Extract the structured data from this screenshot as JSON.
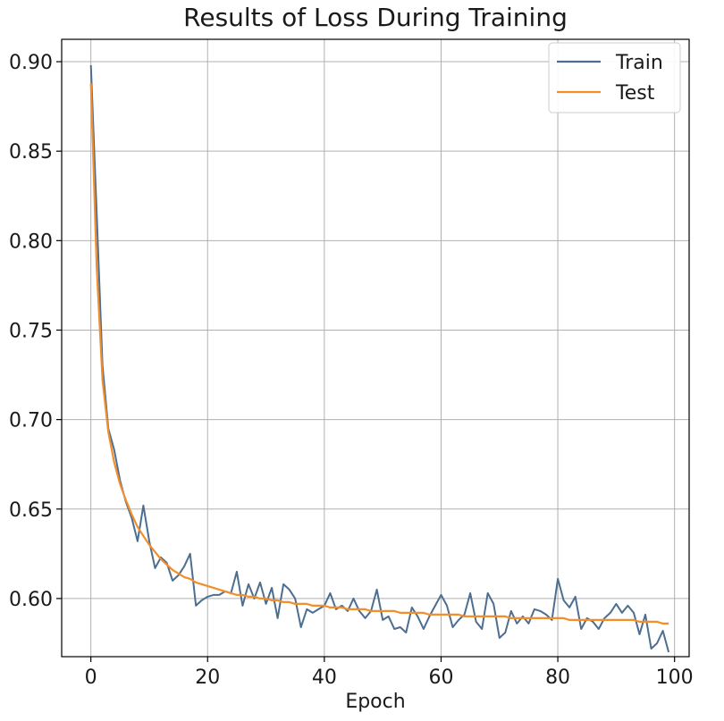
{
  "chart_data": {
    "type": "line",
    "title": "Results of Loss During Training",
    "xlabel": "Epoch",
    "ylabel": "",
    "xlim": [
      -5,
      102.5
    ],
    "ylim": [
      0.5675,
      0.9125
    ],
    "xticks": [
      0,
      20,
      40,
      60,
      80,
      100
    ],
    "xtick_labels": [
      "0",
      "20",
      "40",
      "60",
      "80",
      "100"
    ],
    "yticks": [
      0.6,
      0.65,
      0.7,
      0.75,
      0.8,
      0.85,
      0.9
    ],
    "ytick_labels": [
      "0.60",
      "0.65",
      "0.70",
      "0.75",
      "0.80",
      "0.85",
      "0.90"
    ],
    "grid": true,
    "legend_position": "top-right",
    "series": [
      {
        "name": "Train",
        "color": "#4c6e91",
        "x": [
          0,
          1,
          2,
          3,
          4,
          5,
          6,
          7,
          8,
          9,
          10,
          11,
          12,
          13,
          14,
          15,
          16,
          17,
          18,
          19,
          20,
          21,
          22,
          23,
          24,
          25,
          26,
          27,
          28,
          29,
          30,
          31,
          32,
          33,
          34,
          35,
          36,
          37,
          38,
          39,
          40,
          41,
          42,
          43,
          44,
          45,
          46,
          47,
          48,
          49,
          50,
          51,
          52,
          53,
          54,
          55,
          56,
          57,
          58,
          59,
          60,
          61,
          62,
          63,
          64,
          65,
          66,
          67,
          68,
          69,
          70,
          71,
          72,
          73,
          74,
          75,
          76,
          77,
          78,
          79,
          80,
          81,
          82,
          83,
          84,
          85,
          86,
          87,
          88,
          89,
          90,
          91,
          92,
          93,
          94,
          95,
          96,
          97,
          98,
          99
        ],
        "values": [
          0.898,
          0.815,
          0.73,
          0.695,
          0.683,
          0.666,
          0.654,
          0.645,
          0.632,
          0.652,
          0.632,
          0.617,
          0.623,
          0.62,
          0.61,
          0.613,
          0.618,
          0.625,
          0.596,
          0.599,
          0.601,
          0.602,
          0.602,
          0.604,
          0.603,
          0.615,
          0.596,
          0.608,
          0.6,
          0.609,
          0.597,
          0.606,
          0.589,
          0.608,
          0.605,
          0.6,
          0.584,
          0.594,
          0.592,
          0.594,
          0.596,
          0.603,
          0.594,
          0.596,
          0.593,
          0.6,
          0.593,
          0.589,
          0.593,
          0.605,
          0.588,
          0.59,
          0.583,
          0.584,
          0.581,
          0.595,
          0.59,
          0.583,
          0.59,
          0.596,
          0.602,
          0.596,
          0.584,
          0.588,
          0.591,
          0.603,
          0.587,
          0.583,
          0.603,
          0.597,
          0.578,
          0.581,
          0.593,
          0.586,
          0.59,
          0.586,
          0.594,
          0.593,
          0.591,
          0.588,
          0.611,
          0.599,
          0.595,
          0.601,
          0.583,
          0.589,
          0.587,
          0.583,
          0.589,
          0.592,
          0.597,
          0.592,
          0.596,
          0.592,
          0.58,
          0.591,
          0.572,
          0.575,
          0.582,
          0.57
        ]
      },
      {
        "name": "Test",
        "color": "#f28e2b",
        "x": [
          0,
          1,
          2,
          3,
          4,
          5,
          6,
          7,
          8,
          9,
          10,
          11,
          12,
          13,
          14,
          15,
          16,
          17,
          18,
          19,
          20,
          21,
          22,
          23,
          24,
          25,
          26,
          27,
          28,
          29,
          30,
          31,
          32,
          33,
          34,
          35,
          36,
          37,
          38,
          39,
          40,
          41,
          42,
          43,
          44,
          45,
          46,
          47,
          48,
          49,
          50,
          51,
          52,
          53,
          54,
          55,
          56,
          57,
          58,
          59,
          60,
          61,
          62,
          63,
          64,
          65,
          66,
          67,
          68,
          69,
          70,
          71,
          72,
          73,
          74,
          75,
          76,
          77,
          78,
          79,
          80,
          81,
          82,
          83,
          84,
          85,
          86,
          87,
          88,
          89,
          90,
          91,
          92,
          93,
          94,
          95,
          96,
          97,
          98,
          99
        ],
        "values": [
          0.888,
          0.785,
          0.722,
          0.693,
          0.676,
          0.664,
          0.655,
          0.647,
          0.64,
          0.635,
          0.63,
          0.626,
          0.622,
          0.619,
          0.616,
          0.614,
          0.612,
          0.611,
          0.609,
          0.608,
          0.607,
          0.606,
          0.605,
          0.604,
          0.603,
          0.602,
          0.602,
          0.601,
          0.601,
          0.6,
          0.6,
          0.599,
          0.599,
          0.598,
          0.598,
          0.597,
          0.597,
          0.597,
          0.596,
          0.596,
          0.596,
          0.595,
          0.595,
          0.595,
          0.594,
          0.594,
          0.594,
          0.594,
          0.593,
          0.593,
          0.593,
          0.593,
          0.593,
          0.592,
          0.592,
          0.592,
          0.592,
          0.592,
          0.591,
          0.591,
          0.591,
          0.591,
          0.591,
          0.591,
          0.59,
          0.59,
          0.59,
          0.59,
          0.59,
          0.59,
          0.59,
          0.59,
          0.589,
          0.589,
          0.589,
          0.589,
          0.589,
          0.589,
          0.589,
          0.589,
          0.589,
          0.589,
          0.588,
          0.588,
          0.588,
          0.588,
          0.588,
          0.588,
          0.588,
          0.588,
          0.588,
          0.588,
          0.588,
          0.588,
          0.587,
          0.587,
          0.587,
          0.587,
          0.586,
          0.586
        ]
      }
    ]
  }
}
